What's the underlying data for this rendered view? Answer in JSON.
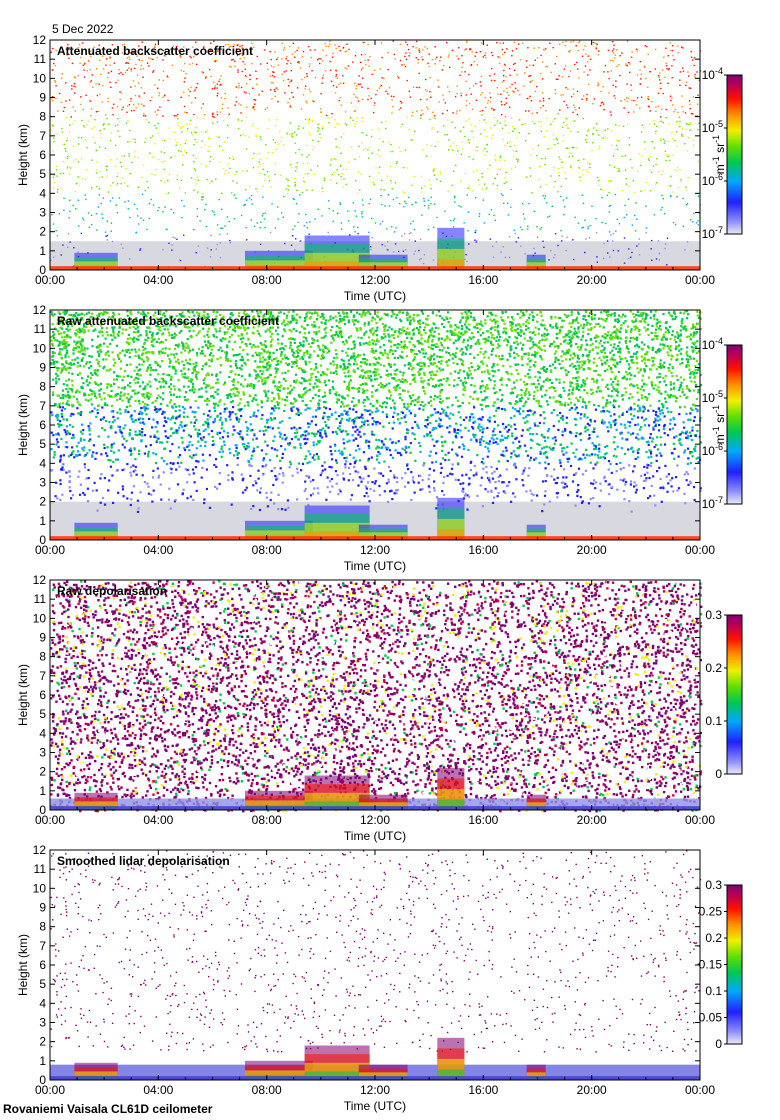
{
  "date_label": "5 Dec 2022",
  "footer": "Rovaniemi Vaisala CL61D ceilometer",
  "chart_data": [
    {
      "type": "heatmap",
      "title": "Attenuated backscatter coefficient",
      "xlabel": "Time (UTC)",
      "ylabel": "Height (km)",
      "xticks": [
        "00:00",
        "04:00",
        "08:00",
        "12:00",
        "16:00",
        "20:00",
        "00:00"
      ],
      "yticks": [
        "0",
        "1",
        "2",
        "3",
        "4",
        "5",
        "6",
        "7",
        "8",
        "9",
        "10",
        "11",
        "12"
      ],
      "ylim": [
        0,
        12
      ],
      "xlim_hours": [
        0,
        24
      ],
      "colorbar": {
        "scale": "log",
        "ticks": [
          {
            "b": "10",
            "e": "-7"
          },
          {
            "b": "10",
            "e": "-6"
          },
          {
            "b": "10",
            "e": "-5"
          },
          {
            "b": "10",
            "e": "-4"
          }
        ],
        "unit": {
          "a": "m",
          "e1": "-1",
          "b": "sr",
          "e2": "-1"
        }
      }
    },
    {
      "type": "heatmap",
      "title": "Raw attenuated backscatter coefficient",
      "xlabel": "Time (UTC)",
      "ylabel": "Height (km)",
      "xticks": [
        "00:00",
        "04:00",
        "08:00",
        "12:00",
        "16:00",
        "20:00",
        "00:00"
      ],
      "yticks": [
        "0",
        "1",
        "2",
        "3",
        "4",
        "5",
        "6",
        "7",
        "8",
        "9",
        "10",
        "11",
        "12"
      ],
      "ylim": [
        0,
        12
      ],
      "xlim_hours": [
        0,
        24
      ],
      "colorbar": {
        "scale": "log",
        "ticks": [
          {
            "b": "10",
            "e": "-7"
          },
          {
            "b": "10",
            "e": "-6"
          },
          {
            "b": "10",
            "e": "-5"
          },
          {
            "b": "10",
            "e": "-4"
          }
        ],
        "unit": {
          "a": "m",
          "e1": "-1",
          "b": "sr",
          "e2": "-1"
        }
      }
    },
    {
      "type": "heatmap",
      "title": "Raw depolarisation",
      "xlabel": "Time (UTC)",
      "ylabel": "Height (km)",
      "xticks": [
        "00:00",
        "04:00",
        "08:00",
        "12:00",
        "16:00",
        "20:00",
        "00:00"
      ],
      "yticks": [
        "0",
        "1",
        "2",
        "3",
        "4",
        "5",
        "6",
        "7",
        "8",
        "9",
        "10",
        "11",
        "12"
      ],
      "ylim": [
        0,
        12
      ],
      "xlim_hours": [
        0,
        24
      ],
      "colorbar": {
        "scale": "linear",
        "range": [
          0,
          0.3
        ],
        "ticks": [
          "0",
          "0.1",
          "0.2",
          "0.3"
        ]
      }
    },
    {
      "type": "heatmap",
      "title": "Smoothed lidar depolarisation",
      "xlabel": "Time (UTC)",
      "ylabel": "Height (km)",
      "xticks": [
        "00:00",
        "04:00",
        "08:00",
        "12:00",
        "16:00",
        "20:00",
        "00:00"
      ],
      "yticks": [
        "0",
        "1",
        "2",
        "3",
        "4",
        "5",
        "6",
        "7",
        "8",
        "9",
        "10",
        "11",
        "12"
      ],
      "ylim": [
        0,
        12
      ],
      "xlim_hours": [
        0,
        24
      ],
      "colorbar": {
        "scale": "linear",
        "range": [
          0,
          0.3
        ],
        "ticks": [
          "0",
          "0.05",
          "0.1",
          "0.15",
          "0.2",
          "0.25",
          "0.3"
        ]
      }
    }
  ]
}
